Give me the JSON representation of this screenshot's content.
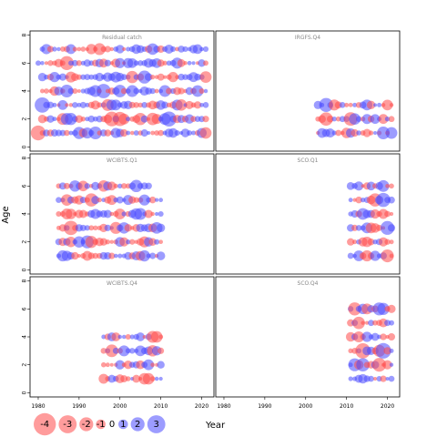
{
  "chart_data": {
    "type": "scatter",
    "title": "",
    "xlabel": "Year",
    "ylabel": "Age",
    "xlim": [
      1978,
      2023
    ],
    "ylim": [
      -0.3,
      8.3
    ],
    "xticks": [
      1980,
      1990,
      2000,
      2010,
      2020
    ],
    "yticks": [
      0,
      2,
      4,
      6,
      8
    ],
    "grid": false,
    "legend_position": "bottom-left",
    "colors": {
      "positive": "#4a4aff",
      "negative": "#ff4a4a"
    },
    "panels": [
      {
        "name": "Residual catch",
        "rows": [
          {
            "age": 1,
            "years": [
              1980,
              2021
            ]
          },
          {
            "age": 2,
            "years": [
              1981,
              2021
            ]
          },
          {
            "age": 3,
            "years": [
              1981,
              2021
            ]
          },
          {
            "age": 4,
            "years": [
              1981,
              2021
            ]
          },
          {
            "age": 5,
            "years": [
              1981,
              2021
            ]
          },
          {
            "age": 6,
            "years": [
              1980,
              2021
            ]
          },
          {
            "age": 7,
            "years": [
              1981,
              2021
            ]
          }
        ]
      },
      {
        "name": "IRGFS.Q4",
        "rows": [
          {
            "age": 1,
            "years": [
              2003,
              2021
            ]
          },
          {
            "age": 2,
            "years": [
              2003,
              2021
            ]
          },
          {
            "age": 3,
            "years": [
              2003,
              2021
            ]
          }
        ]
      },
      {
        "name": "WCIBTS.Q1",
        "rows": [
          {
            "age": 1,
            "years": [
              1985,
              2010
            ]
          },
          {
            "age": 2,
            "years": [
              1985,
              2010
            ]
          },
          {
            "age": 3,
            "years": [
              1985,
              2010
            ]
          },
          {
            "age": 4,
            "years": [
              1985,
              2010
            ]
          },
          {
            "age": 5,
            "years": [
              1985,
              2010
            ]
          },
          {
            "age": 6,
            "years": [
              1985,
              2007
            ]
          }
        ]
      },
      {
        "name": "SCO.Q1",
        "rows": [
          {
            "age": 1,
            "years": [
              2011,
              2021
            ]
          },
          {
            "age": 2,
            "years": [
              2011,
              2021
            ]
          },
          {
            "age": 3,
            "years": [
              2011,
              2021
            ]
          },
          {
            "age": 4,
            "years": [
              2011,
              2021
            ]
          },
          {
            "age": 5,
            "years": [
              2011,
              2021
            ]
          },
          {
            "age": 6,
            "years": [
              2011,
              2021
            ]
          }
        ]
      },
      {
        "name": "WCIBTS.Q4",
        "rows": [
          {
            "age": 1,
            "years": [
              1996,
              2010
            ]
          },
          {
            "age": 2,
            "years": [
              1996,
              2010
            ]
          },
          {
            "age": 3,
            "years": [
              1996,
              2010
            ]
          },
          {
            "age": 4,
            "years": [
              1996,
              2010
            ]
          }
        ]
      },
      {
        "name": "SCO.Q4",
        "rows": [
          {
            "age": 1,
            "years": [
              2011,
              2021
            ]
          },
          {
            "age": 2,
            "years": [
              2011,
              2021
            ]
          },
          {
            "age": 3,
            "years": [
              2011,
              2021
            ]
          },
          {
            "age": 4,
            "years": [
              2011,
              2021
            ]
          },
          {
            "age": 5,
            "years": [
              2011,
              2021
            ]
          },
          {
            "age": 6,
            "years": [
              2011,
              2021
            ]
          }
        ]
      }
    ],
    "legend": [
      {
        "label": "-4",
        "value": -4
      },
      {
        "label": "-3",
        "value": -3
      },
      {
        "label": "-2",
        "value": -2
      },
      {
        "label": "-1",
        "value": -1
      },
      {
        "label": "0",
        "value": 0
      },
      {
        "label": "1",
        "value": 1
      },
      {
        "label": "2",
        "value": 2
      },
      {
        "label": "3",
        "value": 3
      }
    ]
  }
}
